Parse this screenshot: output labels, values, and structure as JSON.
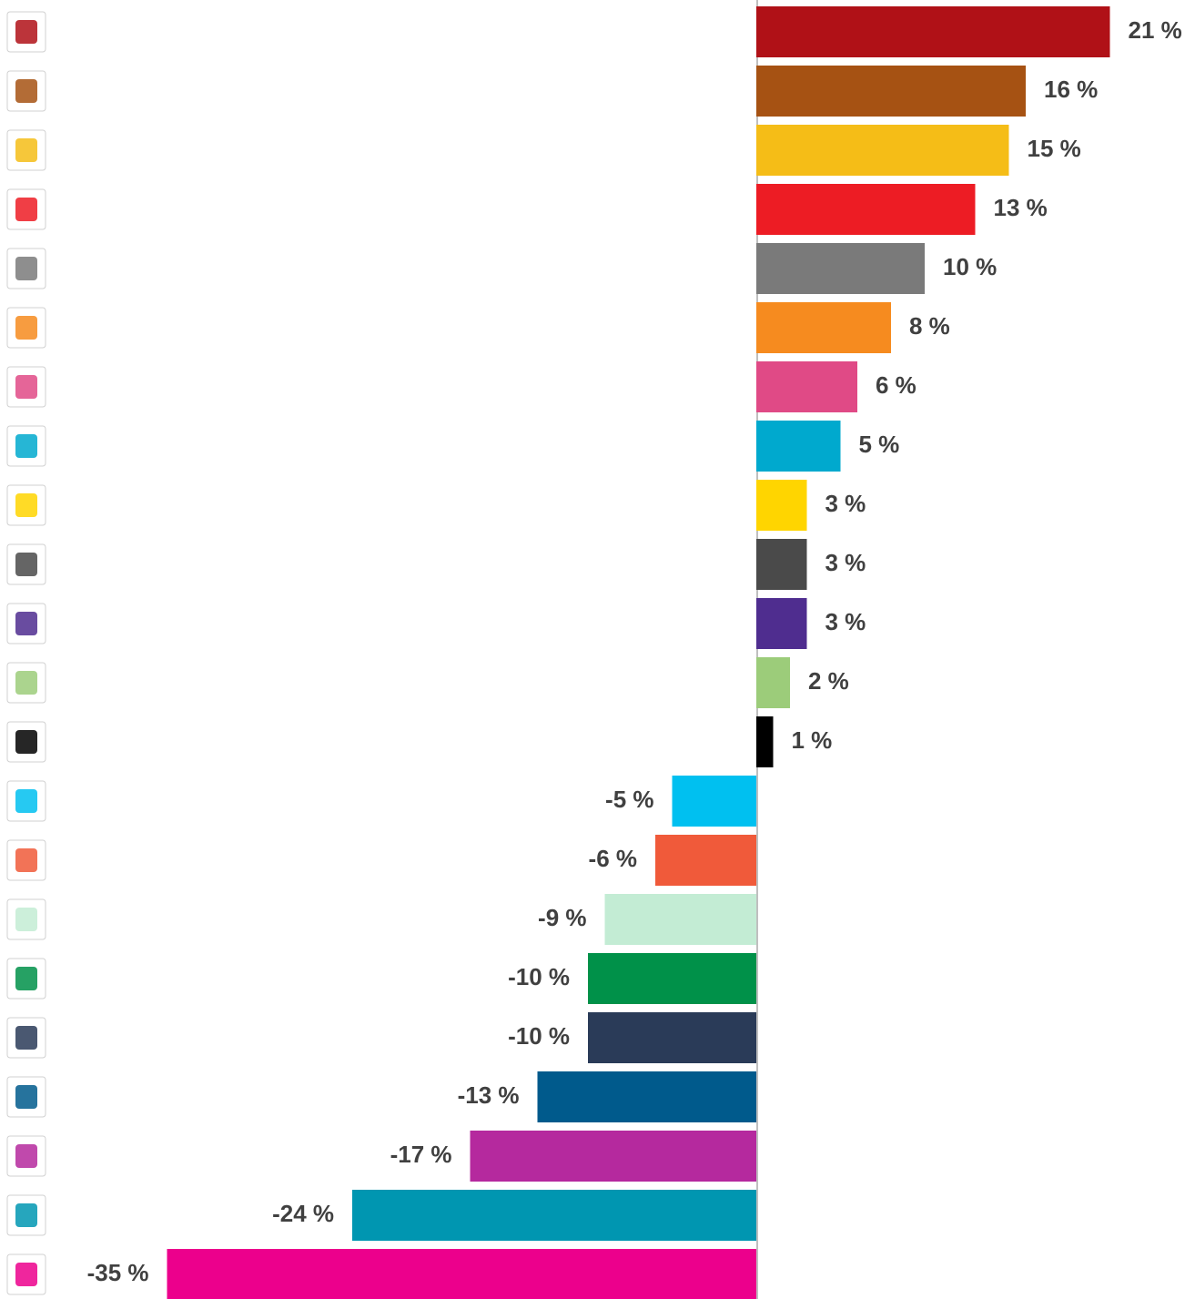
{
  "chart_data": {
    "type": "bar",
    "orientation": "horizontal",
    "categories": [
      null,
      null,
      null,
      null,
      null,
      null,
      null,
      null,
      null,
      null,
      null,
      null,
      null,
      null,
      null,
      null,
      null,
      null,
      null,
      null,
      null,
      null
    ],
    "values": [
      21,
      16,
      15,
      13,
      10,
      8,
      6,
      5,
      3,
      3,
      3,
      2,
      1,
      -5,
      -6,
      -9,
      -10,
      -10,
      -13,
      -17,
      -24,
      -35
    ],
    "value_labels": [
      "21 %",
      "16 %",
      "15 %",
      "13 %",
      "10 %",
      "8 %",
      "6 %",
      "5 %",
      "3 %",
      "3 %",
      "3 %",
      "2 %",
      "1 %",
      "-5 %",
      "-6 %",
      "-9 %",
      "-10 %",
      "-10 %",
      "-13 %",
      "-17 %",
      "-24 %",
      "-35 %"
    ],
    "colors": [
      "#b01117",
      "#a65213",
      "#f5bd17",
      "#ed1c24",
      "#7a7a7a",
      "#f68b1f",
      "#e04a86",
      "#00a9ce",
      "#ffd500",
      "#4a4a4a",
      "#4f2d8f",
      "#9ccc7a",
      "#000000",
      "#00c0f0",
      "#f05a3a",
      "#c3ecd4",
      "#009149",
      "#2a3b58",
      "#005a8c",
      "#b5299e",
      "#0096b1",
      "#ec008c"
    ]
  }
}
